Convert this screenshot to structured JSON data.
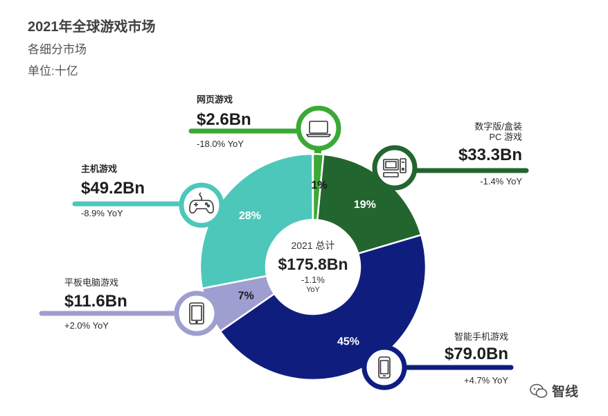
{
  "header": {
    "title": "2021年全球游戏市场",
    "subtitle": "各细分市场",
    "unit": "单位:十亿"
  },
  "center": {
    "label": "2021 总计",
    "total": "$175.8Bn",
    "change": "-1.1%",
    "yoy": "YoY"
  },
  "watermark": "智线",
  "chart_data": {
    "type": "pie",
    "style": "donut",
    "title": "2021年全球游戏市场",
    "subtitle": "各细分市场",
    "unit": "十亿",
    "total": 175.8,
    "slices": [
      {
        "name": "网页游戏",
        "value_label": "$2.6Bn",
        "value": 2.6,
        "percent": 1,
        "pct_label": "1%",
        "yoy": "-18.0% YoY",
        "icon": "laptop-icon",
        "color": "#3aa935"
      },
      {
        "name": "数字版/盒装\nPC 游戏",
        "value_label": "$33.3Bn",
        "value": 33.3,
        "percent": 19,
        "pct_label": "19%",
        "yoy": "-1.4% YoY",
        "icon": "desktop-pc-icon",
        "color": "#23652f"
      },
      {
        "name": "智能手机游戏",
        "value_label": "$79.0Bn",
        "value": 79.0,
        "percent": 45,
        "pct_label": "45%",
        "yoy": "+4.7% YoY",
        "icon": "smartphone-icon",
        "color": "#0f1e7e"
      },
      {
        "name": "平板电脑游戏",
        "value_label": "$11.6Bn",
        "value": 11.6,
        "percent": 7,
        "pct_label": "7%",
        "yoy": "+2.0% YoY",
        "icon": "tablet-icon",
        "color": "#9f9ed0"
      },
      {
        "name": "主机游戏",
        "value_label": "$49.2Bn",
        "value": 49.2,
        "percent": 28,
        "pct_label": "28%",
        "yoy": "-8.9% YoY",
        "icon": "gamepad-icon",
        "color": "#4ec7bb"
      }
    ]
  }
}
